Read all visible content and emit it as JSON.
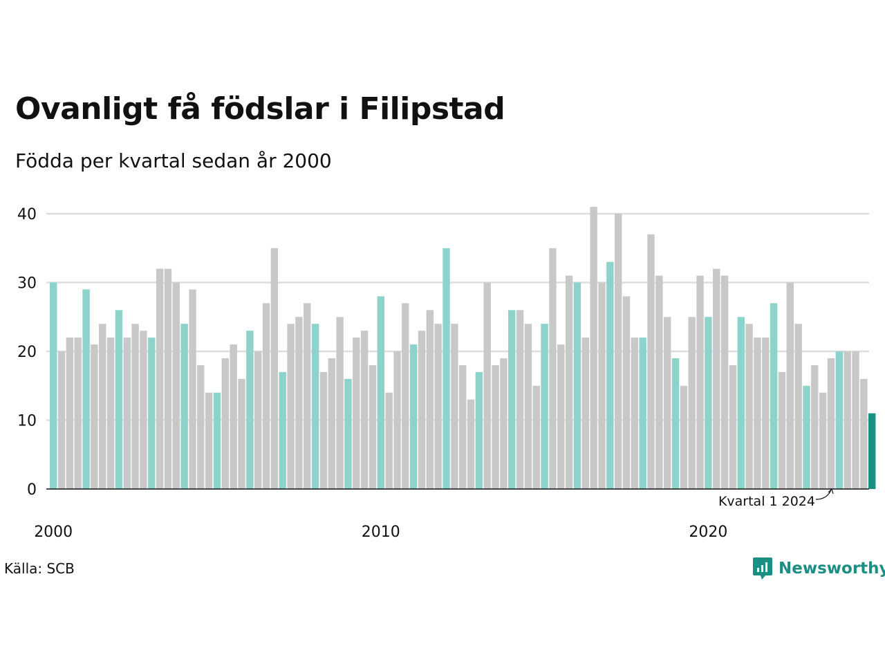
{
  "title": "Ovanligt få födslar i Filipstad",
  "subtitle": "Födda per kvartal sedan år 2000",
  "source": "Källa: SCB",
  "brand": "Newsworthy",
  "annotation": "Kvartal 1 2024",
  "colors": {
    "q1": "#8dd3cb",
    "other": "#c8c8c8",
    "latest": "#1a8f84",
    "grid": "#dddddd",
    "axis": "#111111",
    "brand": "#1b8f83"
  },
  "chart_data": {
    "type": "bar",
    "ylim": [
      0,
      40
    ],
    "yticks": [
      0,
      10,
      20,
      30,
      40
    ],
    "xtick_labels": [
      "2000",
      "2010",
      "2020"
    ],
    "grid": true,
    "highlight": "kvartal 1 of each year highlighted in teal; latest bar (Kvartal 1 2024) in dark teal",
    "start_year": 2000,
    "start_quarter": 1,
    "values": [
      30,
      20,
      22,
      22,
      29,
      21,
      24,
      22,
      26,
      22,
      24,
      23,
      22,
      32,
      32,
      30,
      24,
      29,
      18,
      14,
      14,
      19,
      21,
      16,
      23,
      20,
      27,
      35,
      17,
      24,
      25,
      27,
      24,
      17,
      19,
      25,
      16,
      22,
      23,
      18,
      28,
      14,
      20,
      27,
      21,
      23,
      26,
      24,
      35,
      24,
      18,
      13,
      17,
      30,
      18,
      19,
      26,
      26,
      24,
      15,
      24,
      35,
      21,
      31,
      30,
      22,
      41,
      30,
      33,
      40,
      28,
      22,
      22,
      37,
      31,
      25,
      19,
      15,
      25,
      31,
      25,
      32,
      31,
      18,
      25,
      24,
      22,
      22,
      27,
      17,
      30,
      24,
      15,
      18,
      14,
      19,
      20,
      20,
      20,
      16,
      11
    ]
  }
}
